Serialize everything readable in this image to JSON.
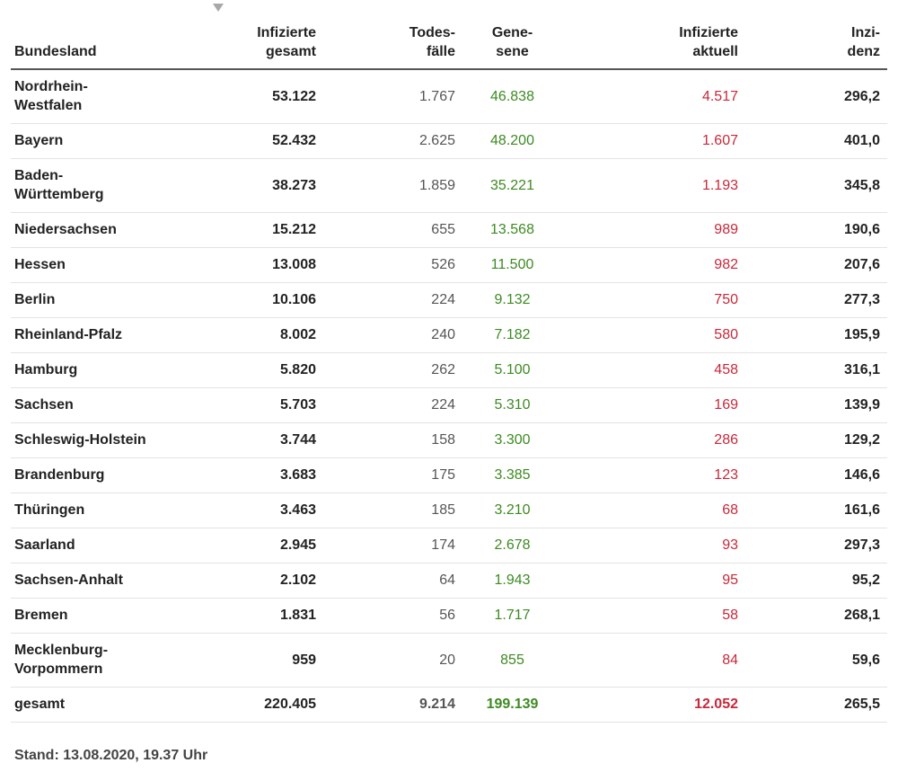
{
  "table": {
    "headers": {
      "bundesland": "Bundesland",
      "infizierte_gesamt": [
        "Infizierte",
        "gesamt"
      ],
      "todesfaelle": [
        "Todes-",
        "fälle"
      ],
      "genesene": [
        "Gene-",
        "sene"
      ],
      "infizierte_aktuell": [
        "Infizierte",
        "aktuell"
      ],
      "inzidenz": [
        "Inzi-",
        "denz"
      ]
    },
    "sort_indicator": "sort-descending-icon",
    "rows": [
      {
        "name": [
          "Nordrhein-",
          "Westfalen"
        ],
        "inf": "53.122",
        "tod": "1.767",
        "gen": "46.838",
        "akt": "4.517",
        "inz": "296,2"
      },
      {
        "name": [
          "Bayern"
        ],
        "inf": "52.432",
        "tod": "2.625",
        "gen": "48.200",
        "akt": "1.607",
        "inz": "401,0"
      },
      {
        "name": [
          "Baden-",
          "Württemberg"
        ],
        "inf": "38.273",
        "tod": "1.859",
        "gen": "35.221",
        "akt": "1.193",
        "inz": "345,8"
      },
      {
        "name": [
          "Niedersachsen"
        ],
        "inf": "15.212",
        "tod": "655",
        "gen": "13.568",
        "akt": "989",
        "inz": "190,6"
      },
      {
        "name": [
          "Hessen"
        ],
        "inf": "13.008",
        "tod": "526",
        "gen": "11.500",
        "akt": "982",
        "inz": "207,6"
      },
      {
        "name": [
          "Berlin"
        ],
        "inf": "10.106",
        "tod": "224",
        "gen": "9.132",
        "akt": "750",
        "inz": "277,3"
      },
      {
        "name": [
          "Rheinland-Pfalz"
        ],
        "inf": "8.002",
        "tod": "240",
        "gen": "7.182",
        "akt": "580",
        "inz": "195,9"
      },
      {
        "name": [
          "Hamburg"
        ],
        "inf": "5.820",
        "tod": "262",
        "gen": "5.100",
        "akt": "458",
        "inz": "316,1"
      },
      {
        "name": [
          "Sachsen"
        ],
        "inf": "5.703",
        "tod": "224",
        "gen": "5.310",
        "akt": "169",
        "inz": "139,9"
      },
      {
        "name": [
          "Schleswig-Holstein"
        ],
        "inf": "3.744",
        "tod": "158",
        "gen": "3.300",
        "akt": "286",
        "inz": "129,2"
      },
      {
        "name": [
          "Brandenburg"
        ],
        "inf": "3.683",
        "tod": "175",
        "gen": "3.385",
        "akt": "123",
        "inz": "146,6"
      },
      {
        "name": [
          "Thüringen"
        ],
        "inf": "3.463",
        "tod": "185",
        "gen": "3.210",
        "akt": "68",
        "inz": "161,6"
      },
      {
        "name": [
          "Saarland"
        ],
        "inf": "2.945",
        "tod": "174",
        "gen": "2.678",
        "akt": "93",
        "inz": "297,3"
      },
      {
        "name": [
          "Sachsen-Anhalt"
        ],
        "inf": "2.102",
        "tod": "64",
        "gen": "1.943",
        "akt": "95",
        "inz": "95,2"
      },
      {
        "name": [
          "Bremen"
        ],
        "inf": "1.831",
        "tod": "56",
        "gen": "1.717",
        "akt": "58",
        "inz": "268,1"
      },
      {
        "name": [
          "Mecklenburg-",
          "Vorpommern"
        ],
        "inf": "959",
        "tod": "20",
        "gen": "855",
        "akt": "84",
        "inz": "59,6"
      }
    ],
    "total": {
      "name": "gesamt",
      "inf": "220.405",
      "tod": "9.214",
      "gen": "199.139",
      "akt": "12.052",
      "inz": "265,5"
    }
  },
  "footer": {
    "stand": "Stand: 13.08.2020, 19.37 Uhr"
  },
  "colors": {
    "genesene": "#3d8a21",
    "infizierte_aktuell": "#c8283a"
  }
}
